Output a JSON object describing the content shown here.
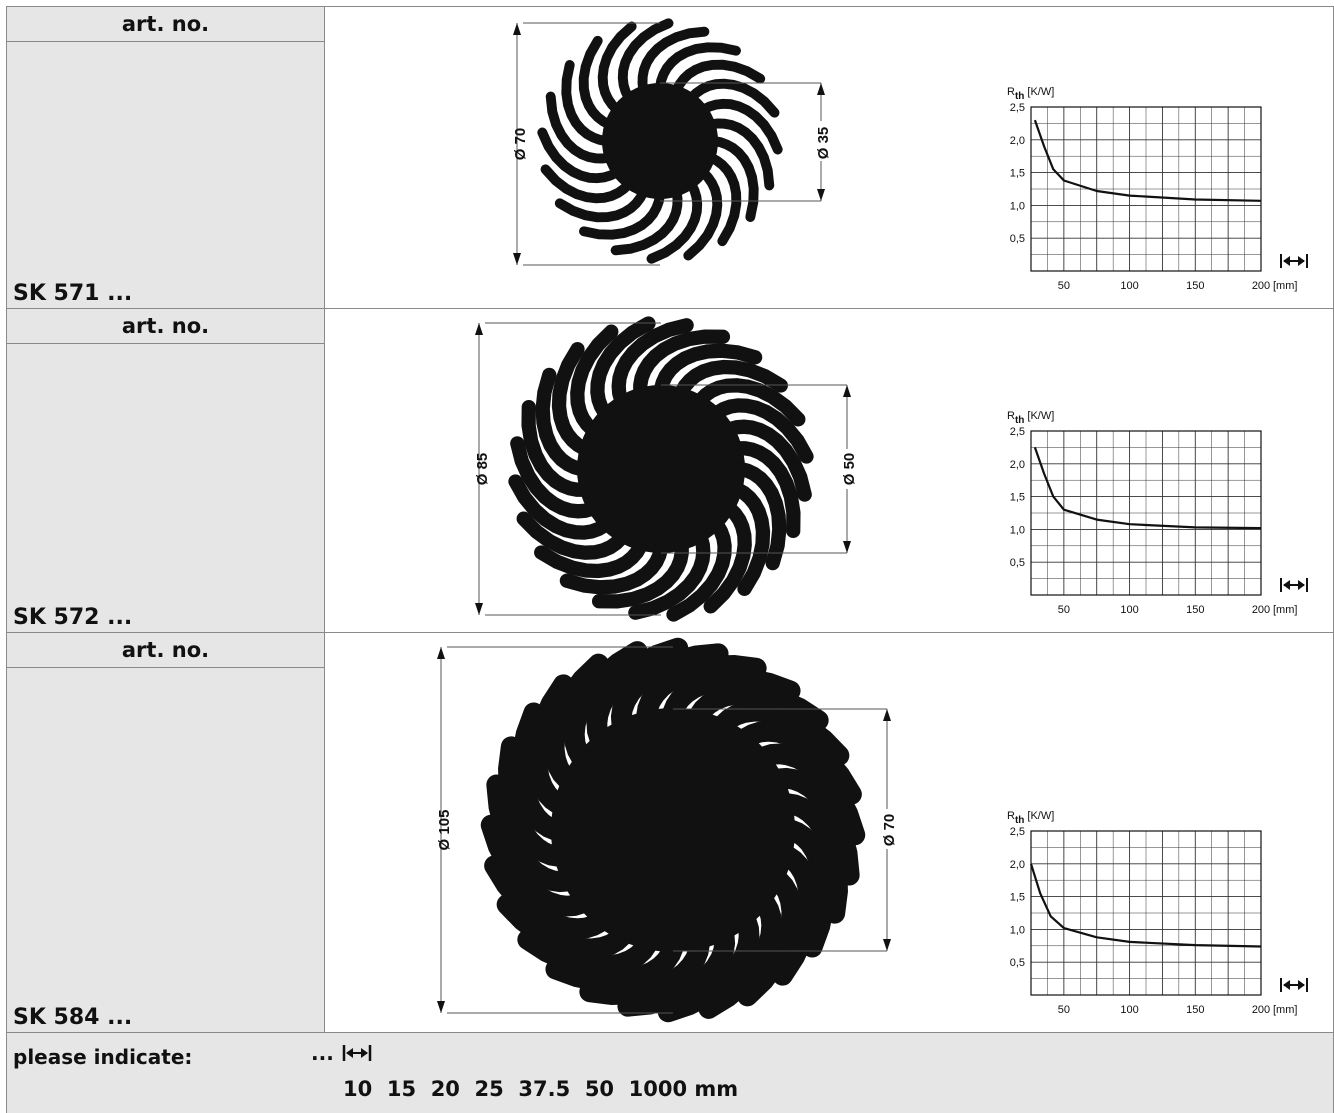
{
  "products": [
    {
      "header": "art. no.",
      "sku": "SK 571 ...",
      "outer_label": "Ø 70",
      "inner_label": "Ø 35",
      "chart": {
        "rth": [
          [
            28,
            2.3
          ],
          [
            35,
            1.9
          ],
          [
            42,
            1.55
          ],
          [
            50,
            1.38
          ],
          [
            75,
            1.22
          ],
          [
            100,
            1.15
          ],
          [
            150,
            1.09
          ],
          [
            200,
            1.07
          ]
        ]
      }
    },
    {
      "header": "art. no.",
      "sku": "SK 572 ...",
      "outer_label": "Ø 85",
      "inner_label": "Ø 50",
      "chart": {
        "rth": [
          [
            28,
            2.25
          ],
          [
            35,
            1.85
          ],
          [
            42,
            1.5
          ],
          [
            50,
            1.3
          ],
          [
            75,
            1.15
          ],
          [
            100,
            1.08
          ],
          [
            150,
            1.03
          ],
          [
            200,
            1.02
          ]
        ]
      }
    },
    {
      "header": "art. no.",
      "sku": "SK 584 ...",
      "outer_label": "Ø 105",
      "inner_label": "Ø 70",
      "chart": {
        "rth": [
          [
            25,
            2.0
          ],
          [
            32,
            1.55
          ],
          [
            40,
            1.2
          ],
          [
            50,
            1.02
          ],
          [
            75,
            0.88
          ],
          [
            100,
            0.81
          ],
          [
            150,
            0.76
          ],
          [
            200,
            0.74
          ]
        ]
      }
    }
  ],
  "chart_data": [
    {
      "type": "line",
      "ylabel_main": "R",
      "ylabel_sub": "th",
      "ylabel_unit": "[K/W]",
      "x_unit": "[mm]",
      "x_ticks": [
        "50",
        "100",
        "150",
        "200"
      ],
      "y_ticks": [
        "0,5",
        "1,0",
        "1,5",
        "2,0",
        "2,5"
      ],
      "xlim": [
        25,
        200
      ],
      "ylim": [
        0,
        2.5
      ],
      "series": [
        {
          "x": [
            28,
            35,
            42,
            50,
            75,
            100,
            150,
            200
          ],
          "y": [
            2.3,
            1.9,
            1.55,
            1.38,
            1.22,
            1.15,
            1.09,
            1.07
          ]
        }
      ]
    },
    {
      "type": "line",
      "ylabel_main": "R",
      "ylabel_sub": "th",
      "ylabel_unit": "[K/W]",
      "x_unit": "[mm]",
      "x_ticks": [
        "50",
        "100",
        "150",
        "200"
      ],
      "y_ticks": [
        "0,5",
        "1,0",
        "1,5",
        "2,0",
        "2,5"
      ],
      "xlim": [
        25,
        200
      ],
      "ylim": [
        0,
        2.5
      ],
      "series": [
        {
          "x": [
            28,
            35,
            42,
            50,
            75,
            100,
            150,
            200
          ],
          "y": [
            2.25,
            1.85,
            1.5,
            1.3,
            1.15,
            1.08,
            1.03,
            1.02
          ]
        }
      ]
    },
    {
      "type": "line",
      "ylabel_main": "R",
      "ylabel_sub": "th",
      "ylabel_unit": "[K/W]",
      "x_unit": "[mm]",
      "x_ticks": [
        "50",
        "100",
        "150",
        "200"
      ],
      "y_ticks": [
        "0,5",
        "1,0",
        "1,5",
        "2,0",
        "2,5"
      ],
      "xlim": [
        25,
        200
      ],
      "ylim": [
        0,
        2.5
      ],
      "series": [
        {
          "x": [
            25,
            32,
            40,
            50,
            75,
            100,
            150,
            200
          ],
          "y": [
            2.0,
            1.55,
            1.2,
            1.02,
            0.88,
            0.81,
            0.76,
            0.74
          ]
        }
      ]
    }
  ],
  "footer": {
    "label": "please indicate:",
    "dots": "...",
    "lengths": "10  15  20  25  37.5  50  1000 mm",
    "length_icon": "length-arrow-icon"
  }
}
